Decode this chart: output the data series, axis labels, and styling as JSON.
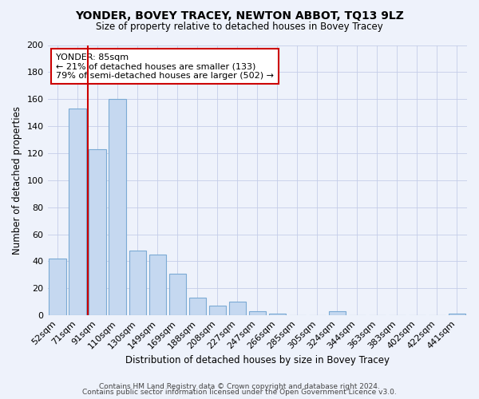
{
  "title": "YONDER, BOVEY TRACEY, NEWTON ABBOT, TQ13 9LZ",
  "subtitle": "Size of property relative to detached houses in Bovey Tracey",
  "xlabel": "Distribution of detached houses by size in Bovey Tracey",
  "ylabel": "Number of detached properties",
  "bar_labels": [
    "52sqm",
    "71sqm",
    "91sqm",
    "110sqm",
    "130sqm",
    "149sqm",
    "169sqm",
    "188sqm",
    "208sqm",
    "227sqm",
    "247sqm",
    "266sqm",
    "285sqm",
    "305sqm",
    "324sqm",
    "344sqm",
    "363sqm",
    "383sqm",
    "402sqm",
    "422sqm",
    "441sqm"
  ],
  "bar_values": [
    42,
    153,
    123,
    160,
    48,
    45,
    31,
    13,
    7,
    10,
    3,
    1,
    0,
    0,
    3,
    0,
    0,
    0,
    0,
    0,
    1
  ],
  "bar_color": "#c5d8f0",
  "bar_edge_color": "#7baad4",
  "vline_color": "#cc0000",
  "annotation_title": "YONDER: 85sqm",
  "annotation_line1": "← 21% of detached houses are smaller (133)",
  "annotation_line2": "79% of semi-detached houses are larger (502) →",
  "ylim": [
    0,
    200
  ],
  "yticks": [
    0,
    20,
    40,
    60,
    80,
    100,
    120,
    140,
    160,
    180,
    200
  ],
  "footer1": "Contains HM Land Registry data © Crown copyright and database right 2024.",
  "footer2": "Contains public sector information licensed under the Open Government Licence v3.0.",
  "bg_color": "#eef2fb",
  "plot_bg_color": "#eef2fb",
  "grid_color": "#c5cde8"
}
